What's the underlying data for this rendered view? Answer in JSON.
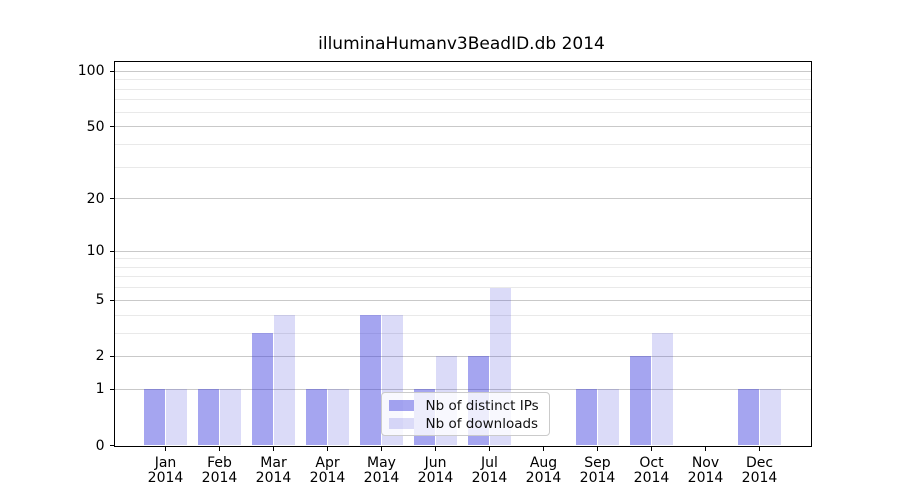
{
  "chart_data": {
    "type": "bar",
    "title": "illuminaHumanv3BeadID.db 2014",
    "x_months": [
      "Jan",
      "Feb",
      "Mar",
      "Apr",
      "May",
      "Jun",
      "Jul",
      "Aug",
      "Sep",
      "Oct",
      "Nov",
      "Dec"
    ],
    "x_year": "2014",
    "series": [
      {
        "name": "Nb of distinct IPs",
        "color": "rgba(55,55,222,0.45)",
        "values": [
          1,
          1,
          3,
          1,
          4,
          1,
          2,
          0,
          1,
          2,
          0,
          1
        ]
      },
      {
        "name": "Nb of downloads",
        "color": "rgba(40,40,214,0.17)",
        "values": [
          1,
          1,
          4,
          1,
          4,
          2,
          6,
          0,
          1,
          3,
          0,
          1
        ]
      }
    ],
    "y_scale": "log1p",
    "y_major_ticks": [
      0,
      1,
      2,
      5,
      10,
      20,
      50,
      100
    ],
    "y_tick_labels": [
      "0",
      "1",
      "2",
      "5",
      "10",
      "20",
      "50",
      "100"
    ],
    "y_minor_gridlines": [
      3,
      4,
      6,
      7,
      8,
      9,
      30,
      40,
      60,
      70,
      80,
      90
    ],
    "ylim": [
      0,
      113
    ],
    "grid": true,
    "legend_position": "inside-lower-center",
    "colors": {
      "grid_major": "#c9c9c9",
      "grid_minor": "#e9e9e9",
      "axis": "#000000",
      "text": "#000000"
    }
  }
}
